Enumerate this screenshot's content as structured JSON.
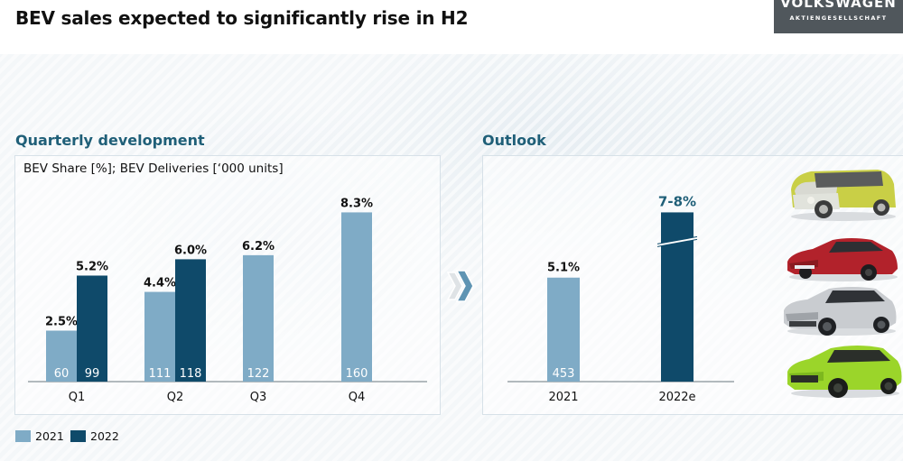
{
  "header": {
    "title": "BEV sales expected to significantly rise in H2",
    "logo_brand": "VOLKSWAGEN",
    "logo_sub": "AKTIENGESELLSCHAFT"
  },
  "colors": {
    "series_2021": "#7fabc6",
    "series_2022": "#0f4a6a",
    "section_title": "#1f5f78",
    "logo_bg": "#50575c"
  },
  "left_section": {
    "title": "Quarterly development",
    "subtitle": "BEV Share [%]; BEV Deliveries [‘000 units]"
  },
  "right_section": {
    "title": "Outlook"
  },
  "legend": [
    {
      "label": "2021",
      "color": "#7fabc6"
    },
    {
      "label": "2022",
      "color": "#0f4a6a"
    }
  ],
  "icons": {
    "arrow": "double-chevron-right-icon",
    "cars": [
      "id-buzz-car-image",
      "porsche-taycan-car-image",
      "id5-car-image",
      "skoda-enyaq-coupe-car-image"
    ]
  },
  "chart_data": [
    {
      "type": "bar",
      "title": "Quarterly development",
      "subtitle": "BEV Share [%]; BEV Deliveries ['000 units]",
      "categories": [
        "Q1",
        "Q2",
        "Q3",
        "Q4"
      ],
      "series": [
        {
          "name": "2021",
          "share_pct": [
            2.5,
            4.4,
            6.2,
            8.3
          ],
          "share_labels": [
            "2.5%",
            "4.4%",
            "6.2%",
            "8.3%"
          ],
          "deliveries": [
            60,
            111,
            122,
            160
          ]
        },
        {
          "name": "2022",
          "share_pct": [
            5.2,
            6.0,
            null,
            null
          ],
          "share_labels": [
            "5.2%",
            "6.0%",
            null,
            null
          ],
          "deliveries": [
            99,
            118,
            null,
            null
          ]
        }
      ],
      "ylim": [
        0,
        9.5
      ],
      "grid": false,
      "legend": "bottom-left"
    },
    {
      "type": "bar",
      "title": "Outlook",
      "categories": [
        "2021",
        "2022e"
      ],
      "series": [
        {
          "name": "BEV share",
          "share_pct": [
            5.1,
            8.3
          ],
          "share_labels": [
            "5.1%",
            "7-8%"
          ],
          "deliveries": [
            453,
            null
          ],
          "axis_break": [
            false,
            true
          ]
        }
      ],
      "ylim": [
        0,
        9.5
      ],
      "grid": false
    }
  ]
}
